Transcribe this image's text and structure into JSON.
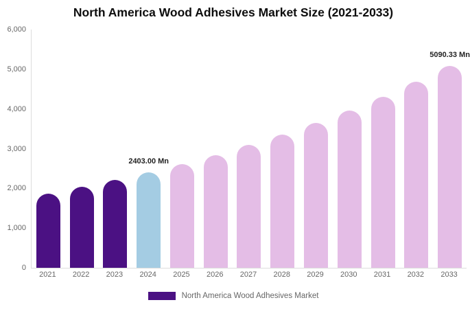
{
  "title": "North America Wood Adhesives Market Size (2021-2033)",
  "colors": {
    "bar_purple": "#4B1183",
    "bar_blue": "#A4CCE3",
    "bar_pink": "#E4BDE6",
    "axis_line": "#dddddd",
    "tick_text": "#666666",
    "label_text": "#222222"
  },
  "chart_data": {
    "type": "bar",
    "title": "North America Wood Adhesives Market Size (2021-2033)",
    "xlabel": "",
    "ylabel": "",
    "unit": "Mn",
    "categories": [
      "2021",
      "2022",
      "2023",
      "2024",
      "2025",
      "2026",
      "2027",
      "2028",
      "2029",
      "2030",
      "2031",
      "2032",
      "2033"
    ],
    "series": [
      {
        "name": "North America Wood Adhesives Market",
        "values": [
          1871,
          2034,
          2211,
          2403,
          2612,
          2840,
          3087,
          3356,
          3648,
          3966,
          4311,
          4687,
          5090.33
        ],
        "colors": [
          "#4B1183",
          "#4B1183",
          "#4B1183",
          "#A4CCE3",
          "#E4BDE6",
          "#E4BDE6",
          "#E4BDE6",
          "#E4BDE6",
          "#E4BDE6",
          "#E4BDE6",
          "#E4BDE6",
          "#E4BDE6",
          "#E4BDE6"
        ]
      }
    ],
    "ylim": [
      0,
      6000
    ],
    "yticks": [
      0,
      1000,
      2000,
      3000,
      4000,
      5000,
      6000
    ],
    "ytick_labels": [
      "0",
      "1,000",
      "2,000",
      "3,000",
      "4,000",
      "5,000",
      "6,000"
    ],
    "grid": false,
    "legend_position": "bottom",
    "annotations": [
      {
        "category": "2024",
        "text": "2403.00 Mn"
      },
      {
        "category": "2033",
        "text": "5090.33 Mn"
      }
    ]
  },
  "legend": {
    "swatch_color": "#4B1183",
    "label": "North America Wood Adhesives Market"
  }
}
